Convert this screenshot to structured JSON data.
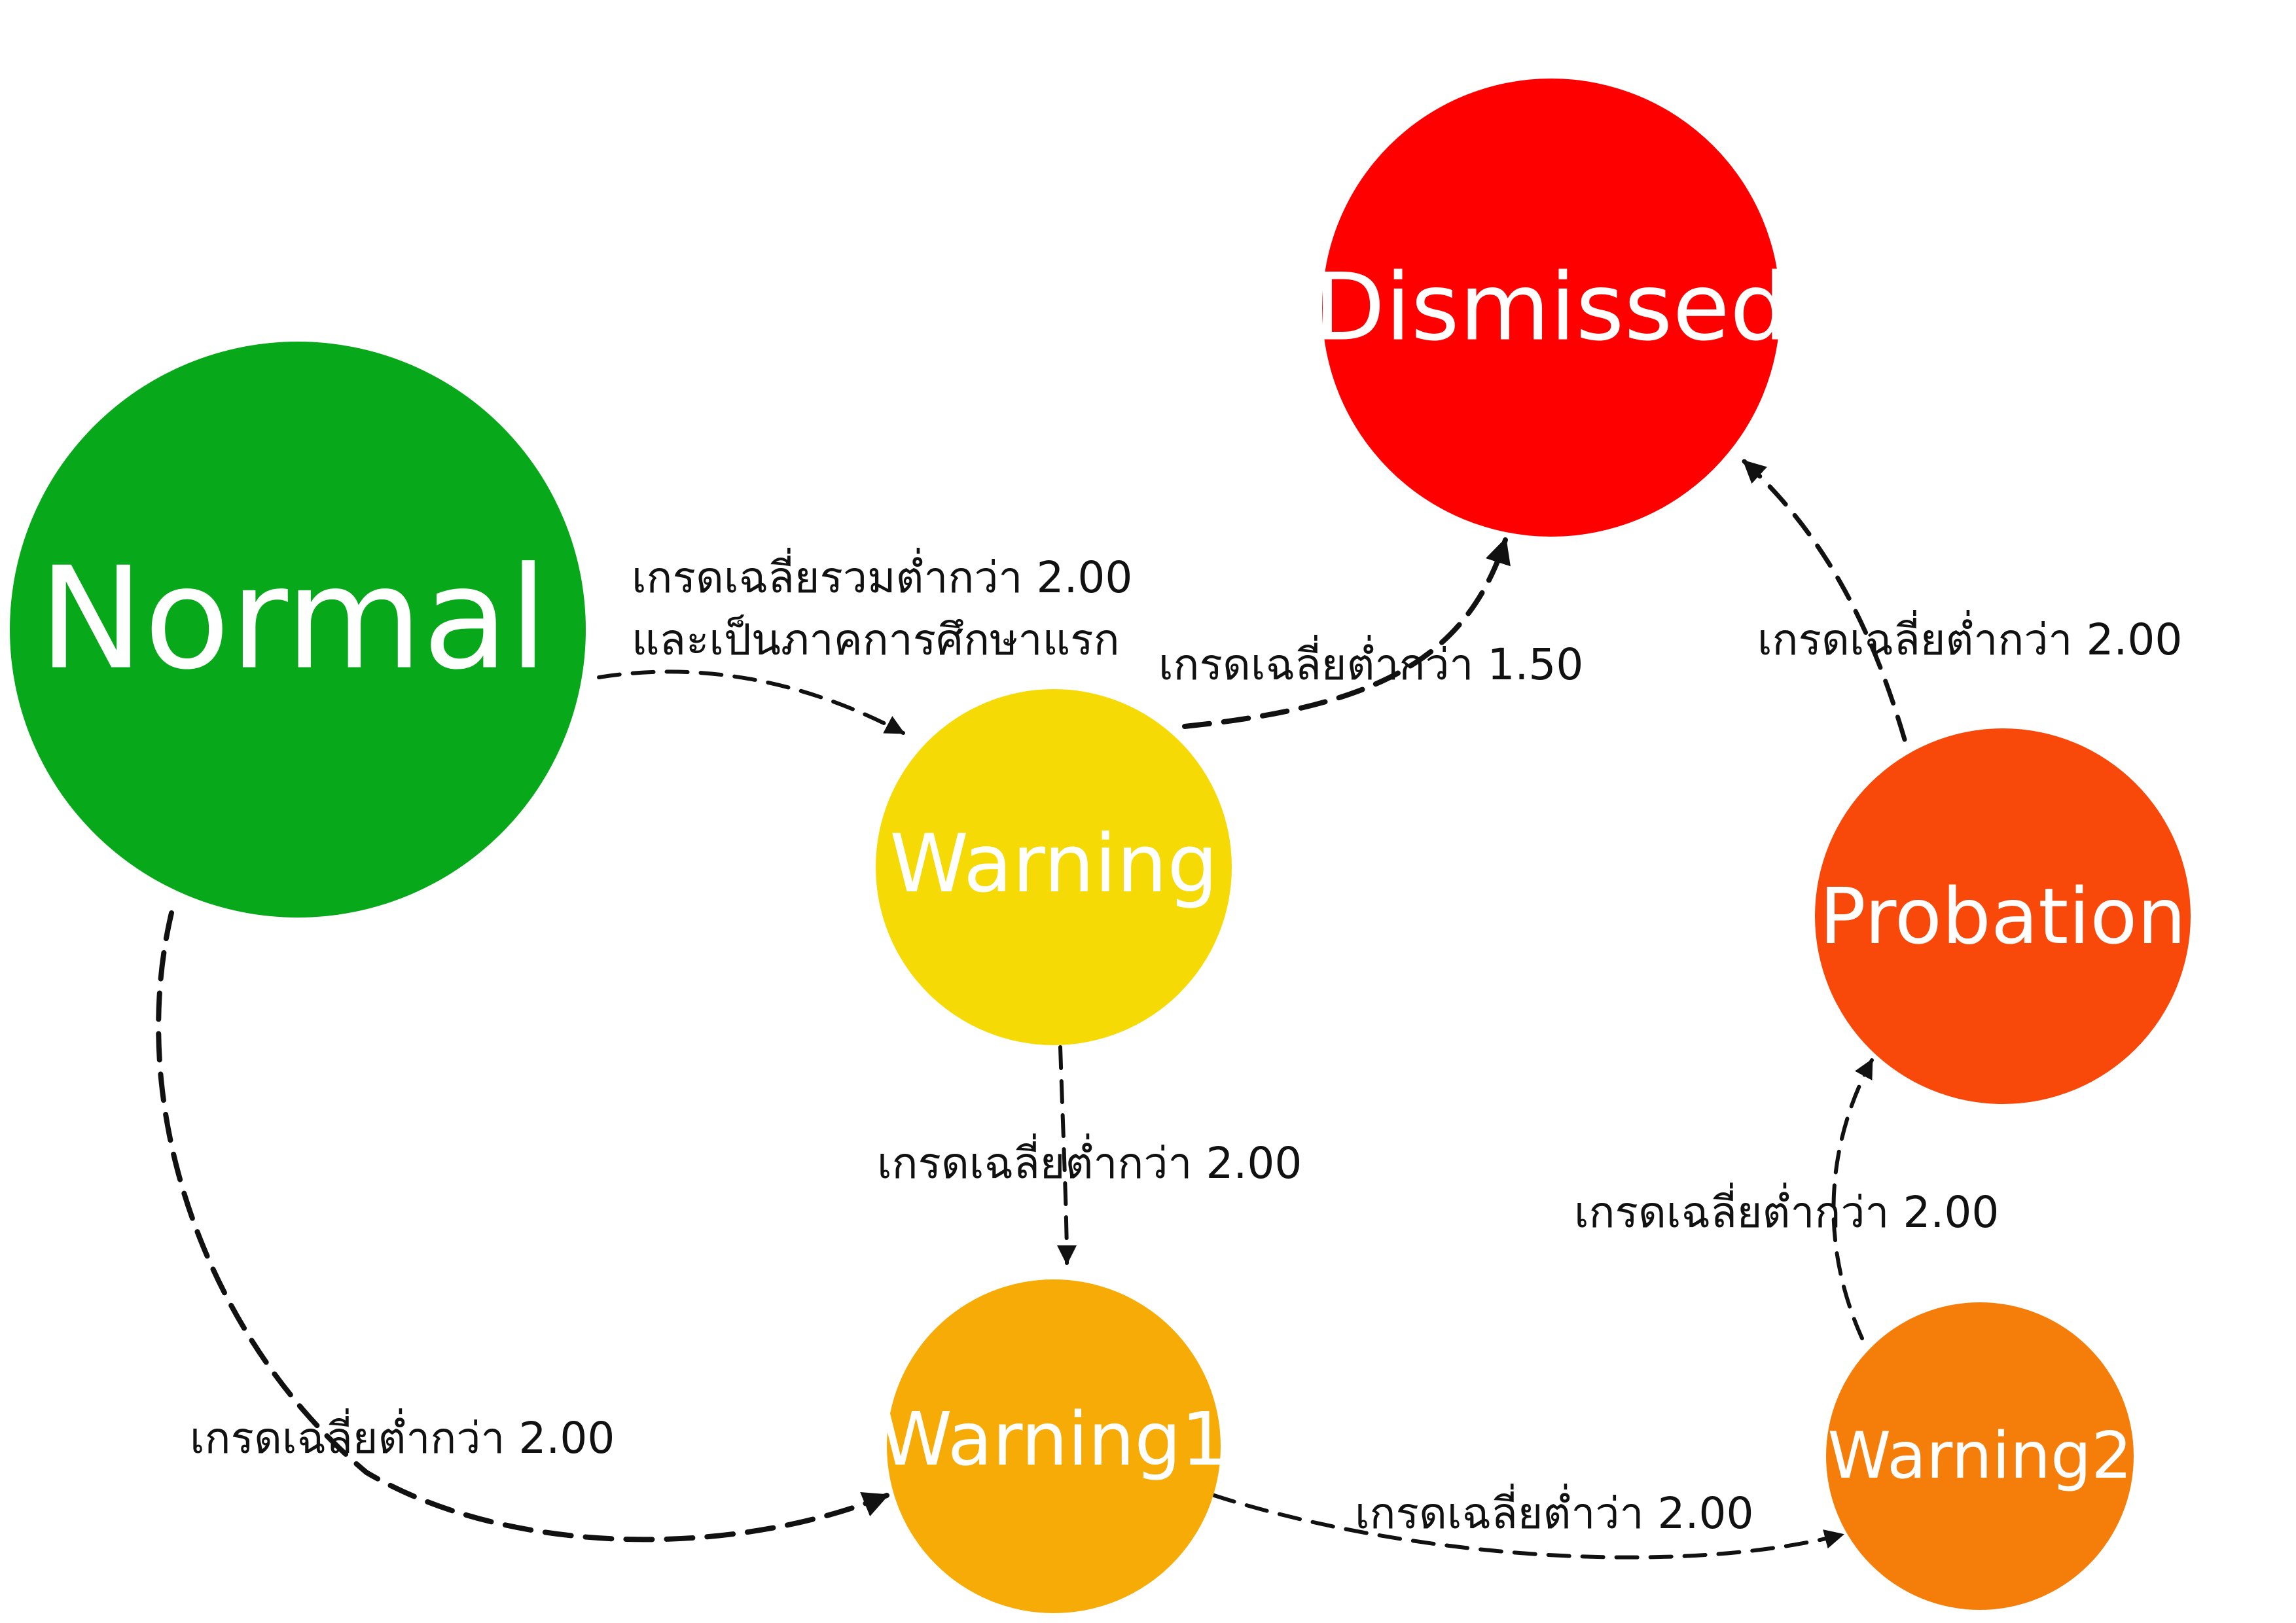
{
  "diagram": {
    "nodes": {
      "normal": {
        "label": "Normal",
        "color": "#08a81b"
      },
      "warning": {
        "label": "Warning",
        "color": "#f6da05"
      },
      "warning1": {
        "label": "Warning1",
        "color": "#f7ab06"
      },
      "warning2": {
        "label": "Warning2",
        "color": "#f57e0a"
      },
      "probation": {
        "label": "Probation",
        "color": "#f8480a"
      },
      "dismissed": {
        "label": "Dismissed",
        "color": "#ff0000"
      }
    },
    "edges": {
      "normal_to_warning": {
        "line1": "เกรดเฉลี่ยรวมต่ำกว่า 2.00",
        "line2": "และเป็นภาคการศึกษาแรก"
      },
      "warning_to_dismissed": {
        "label": "เกรดเฉลี่ยต่ำกว่า 1.50"
      },
      "warning_to_warning1": {
        "label": "เกรดเฉลี่ยต่ำกว่า 2.00"
      },
      "normal_to_warning1": {
        "label": "เกรดเฉลี่ยต่ำกว่า 2.00"
      },
      "warning1_to_warning2": {
        "label": "เกรดเฉลี่ยต่ำว่า 2.00"
      },
      "warning2_to_probation": {
        "label": "เกรดเฉลี่ยต่ำกว่า 2.00"
      },
      "probation_to_dismissed": {
        "label": "เกรดเฉลี่ยต่ำกว่า 2.00"
      }
    }
  }
}
